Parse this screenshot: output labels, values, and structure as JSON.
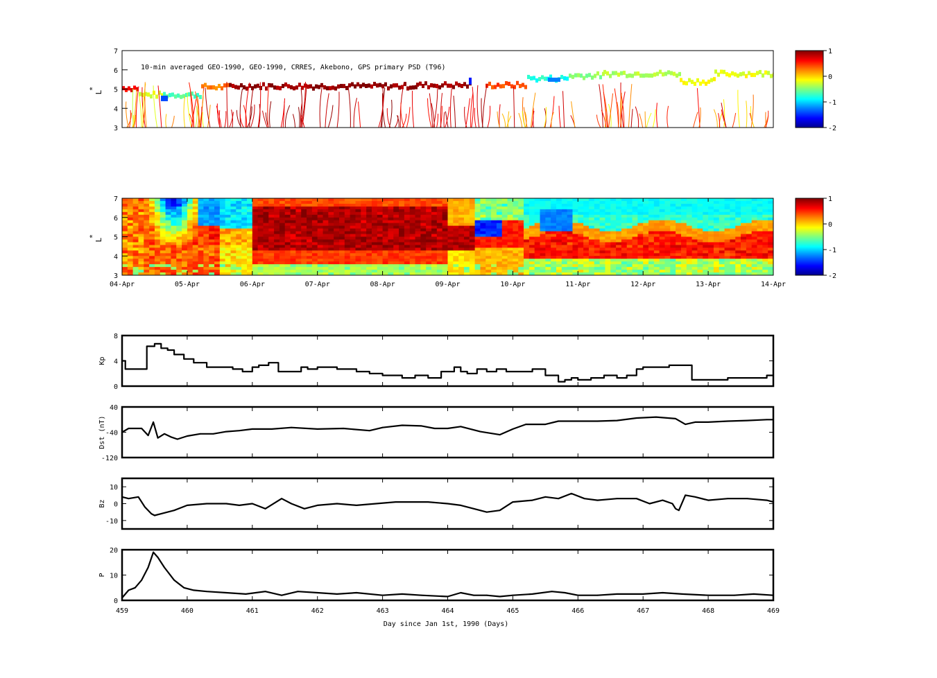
{
  "colorscale": [
    "#00008f",
    "#0000ff",
    "#007fff",
    "#00ffff",
    "#7fff7f",
    "#ffff00",
    "#ff7f00",
    "#ff0000",
    "#7f0000"
  ],
  "chart_data": [
    {
      "type": "heatmap",
      "title": "10-min averaged GEO-1990, GEO-1990, CRRES, Akebono, GPS  primary PSD (T96)",
      "ylabel": "L*",
      "ylabel_main": "L",
      "ylabel_sup": "*",
      "ylim": [
        3,
        7
      ],
      "yticks": [
        "3",
        "4",
        "5",
        "6",
        "7"
      ],
      "colorbar": {
        "ticks": [
          "1",
          "0",
          "-1",
          "-2"
        ],
        "range": [
          -2,
          1
        ]
      },
      "description_values": "sparse observed PSD along satellite passes, log scale"
    },
    {
      "type": "heatmap",
      "ylabel": "L*",
      "ylabel_main": "L",
      "ylabel_sup": "*",
      "ylim": [
        3,
        7
      ],
      "yticks": [
        "3",
        "4",
        "5",
        "6",
        "7"
      ],
      "xticks": [
        "04-Apr",
        "05-Apr",
        "06-Apr",
        "07-Apr",
        "08-Apr",
        "09-Apr",
        "10-Apr",
        "11-Apr",
        "12-Apr",
        "13-Apr",
        "14-Apr"
      ],
      "colorbar": {
        "ticks": [
          "1",
          "0",
          "-1",
          "-2"
        ],
        "range": [
          -2,
          1
        ]
      }
    },
    {
      "type": "line",
      "ylabel": "Kp",
      "ylim": [
        0,
        8
      ],
      "yticks": [
        "0",
        "4",
        "8"
      ],
      "x": [
        459,
        459.05,
        459.35,
        459.38,
        459.5,
        459.6,
        459.7,
        459.8,
        459.95,
        460.1,
        460.3,
        460.5,
        460.7,
        460.85,
        461.0,
        461.1,
        461.25,
        461.4,
        461.6,
        461.75,
        461.85,
        462.0,
        462.3,
        462.6,
        462.8,
        463.0,
        463.3,
        463.5,
        463.7,
        463.9,
        464.1,
        464.2,
        464.3,
        464.45,
        464.6,
        464.75,
        464.9,
        465.1,
        465.3,
        465.5,
        465.7,
        465.8,
        465.9,
        466.0,
        466.2,
        466.4,
        466.6,
        466.75,
        466.9,
        467.0,
        467.2,
        467.4,
        467.6,
        467.75,
        468.0,
        468.3,
        468.6,
        468.9,
        469.0
      ],
      "values": [
        4,
        2.7,
        2.7,
        6.3,
        6.7,
        6,
        5.7,
        5,
        4.3,
        3.7,
        3,
        3,
        2.7,
        2.3,
        3,
        3.3,
        3.7,
        2.3,
        2.3,
        3,
        2.7,
        3,
        2.7,
        2.3,
        2,
        1.7,
        1.3,
        1.7,
        1.3,
        2.3,
        3,
        2.3,
        2,
        2.7,
        2.3,
        2.7,
        2.3,
        2.3,
        2.7,
        1.7,
        0.7,
        1,
        1.3,
        1,
        1.3,
        1.7,
        1.3,
        1.7,
        2.7,
        3,
        3,
        3.3,
        3.3,
        1,
        1,
        1.3,
        1.3,
        1.7,
        1.7
      ]
    },
    {
      "type": "line",
      "ylabel": "Dst (nT)",
      "ylim": [
        -120,
        40
      ],
      "yticks": [
        "-120",
        "-40",
        "40"
      ],
      "x": [
        459,
        459.1,
        459.3,
        459.4,
        459.48,
        459.55,
        459.65,
        459.75,
        459.85,
        460.0,
        460.2,
        460.4,
        460.6,
        460.8,
        461.0,
        461.3,
        461.6,
        462.0,
        462.4,
        462.8,
        463.0,
        463.3,
        463.6,
        463.8,
        464.0,
        464.2,
        464.5,
        464.8,
        465.0,
        465.2,
        465.5,
        465.7,
        466.0,
        466.3,
        466.6,
        466.9,
        467.2,
        467.5,
        467.65,
        467.8,
        468.0,
        468.3,
        468.6,
        468.9,
        469.0
      ],
      "values": [
        -40,
        -28,
        -28,
        -50,
        -8,
        -58,
        -45,
        -55,
        -62,
        -52,
        -45,
        -45,
        -38,
        -35,
        -30,
        -30,
        -25,
        -30,
        -28,
        -35,
        -25,
        -18,
        -20,
        -28,
        -28,
        -22,
        -38,
        -48,
        -30,
        -15,
        -15,
        -5,
        -5,
        -5,
        -3,
        5,
        8,
        3,
        -15,
        -8,
        -8,
        -5,
        -3,
        0,
        0
      ]
    },
    {
      "type": "line",
      "ylabel": "Bz",
      "ylim": [
        -15,
        15
      ],
      "yticks": [
        "-10",
        "0",
        "10"
      ],
      "x": [
        459,
        459.1,
        459.25,
        459.35,
        459.45,
        459.5,
        459.6,
        459.8,
        460.0,
        460.3,
        460.6,
        460.8,
        461.0,
        461.2,
        461.45,
        461.6,
        461.8,
        462.0,
        462.3,
        462.6,
        462.9,
        463.2,
        463.5,
        463.7,
        464.0,
        464.2,
        464.4,
        464.6,
        464.8,
        465.0,
        465.3,
        465.5,
        465.7,
        465.9,
        466.1,
        466.3,
        466.6,
        466.9,
        467.1,
        467.3,
        467.45,
        467.5,
        467.55,
        467.65,
        467.8,
        468.0,
        468.3,
        468.6,
        468.9,
        469.0
      ],
      "values": [
        4,
        3,
        4,
        -2,
        -6,
        -7,
        -6,
        -4,
        -1,
        0,
        0,
        -1,
        0,
        -3,
        3,
        0,
        -3,
        -1,
        0,
        -1,
        0,
        1,
        1,
        1,
        0,
        -1,
        -3,
        -5,
        -4,
        1,
        2,
        4,
        3,
        6,
        3,
        2,
        3,
        3,
        0,
        2,
        0,
        -3,
        -4,
        5,
        4,
        2,
        3,
        3,
        2,
        1
      ]
    },
    {
      "type": "line",
      "ylabel": "P",
      "ylim": [
        0,
        20
      ],
      "yticks": [
        "0",
        "10",
        "20"
      ],
      "x": [
        459,
        459.1,
        459.2,
        459.3,
        459.4,
        459.48,
        459.55,
        459.65,
        459.8,
        459.95,
        460.1,
        460.3,
        460.6,
        460.9,
        461.2,
        461.45,
        461.7,
        462.0,
        462.3,
        462.6,
        463.0,
        463.3,
        463.6,
        464.0,
        464.2,
        464.4,
        464.6,
        464.8,
        465.0,
        465.3,
        465.6,
        465.8,
        466.0,
        466.3,
        466.6,
        467.0,
        467.3,
        467.6,
        468.0,
        468.4,
        468.7,
        469.0
      ],
      "values": [
        1,
        4,
        5,
        8,
        13,
        19,
        17,
        13,
        8,
        5,
        4,
        3.5,
        3,
        2.5,
        3.5,
        2,
        3.5,
        3,
        2.5,
        3,
        2,
        2.5,
        2,
        1.5,
        3,
        2,
        2,
        1.5,
        2,
        2.5,
        3.5,
        3,
        2,
        2,
        2.5,
        2.5,
        3,
        2.5,
        2,
        2,
        2.5,
        2
      ]
    }
  ],
  "shared_x_axis": {
    "xlabel": "Day since Jan 1st, 1990 (Days)",
    "xlim": [
      459,
      469
    ],
    "xticks": [
      "459",
      "460",
      "461",
      "462",
      "463",
      "464",
      "465",
      "466",
      "467",
      "468",
      "469"
    ]
  }
}
